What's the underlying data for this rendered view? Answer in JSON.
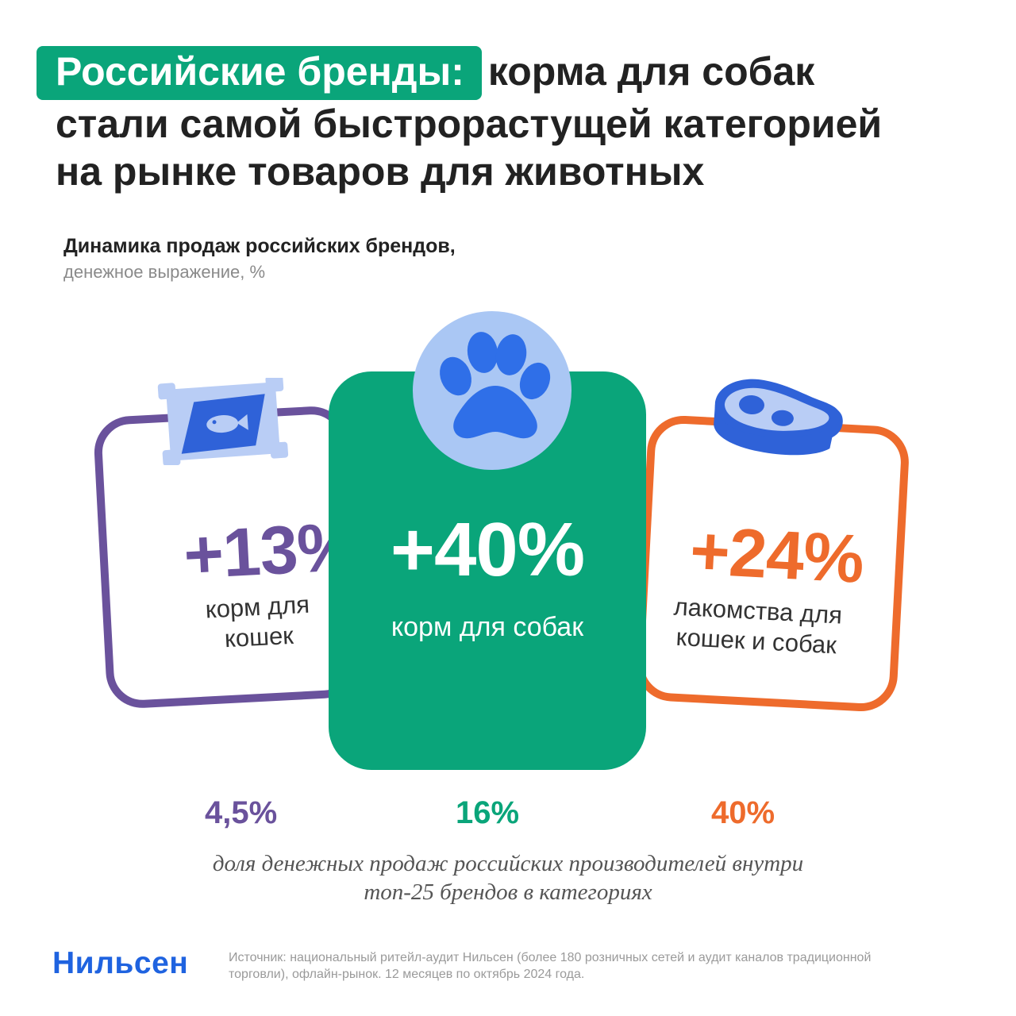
{
  "headline": {
    "highlight": "Российские бренды:",
    "line1_rest": "корма для собак",
    "line2": "стали самой быстрорастущей категорией",
    "line3": "на рынке товаров для животных"
  },
  "subtitle": {
    "title": "Динамика продаж российских брендов,",
    "unit": "денежное выражение, %"
  },
  "chart_data": {
    "type": "bar",
    "title": "Динамика продаж российских брендов,",
    "subtitle": "денежное выражение, %",
    "categories": [
      "корм для кошек",
      "корм для собак",
      "лакомства для кошек и собак"
    ],
    "series": [
      {
        "values": [
          13,
          40,
          24
        ],
        "labels": [
          "+13%",
          "+40%",
          "+24%"
        ]
      },
      {
        "name": "доля денежных продаж российских производителей внутри топ-25 брендов в категориях",
        "values": [
          4.5,
          16,
          40
        ],
        "labels": [
          "4,5%",
          "16%",
          "40%"
        ]
      }
    ]
  },
  "cards": {
    "left": {
      "growth": "+13%",
      "label_line1": "корм для",
      "label_line2": "кошек",
      "icon": "fish-can-icon"
    },
    "center": {
      "growth": "+40%",
      "label": "корм для собак",
      "icon": "paw-icon"
    },
    "right": {
      "growth": "+24%",
      "label_line1": "лакомства для",
      "label_line2": "кошек и собак",
      "icon": "steak-icon"
    }
  },
  "shares": {
    "left": "4,5%",
    "center": "16%",
    "right": "40%",
    "note_line1": "доля денежных продаж российских производителей внутри",
    "note_line2": "топ-25 брендов в категориях"
  },
  "footer": {
    "brand": "Нильсен",
    "source_line1": "Источник: национальный ритейл-аудит Нильсен (более 180 розничных сетей и аудит каналов традиционной",
    "source_line2": "торговли), офлайн-рынок. 12 месяцев по октябрь 2024 года."
  },
  "colors": {
    "green": "#0aa57a",
    "purple": "#6a529c",
    "orange": "#ee6b2c",
    "blue": "#1f63e0",
    "light_blue": "#aac7f4"
  }
}
